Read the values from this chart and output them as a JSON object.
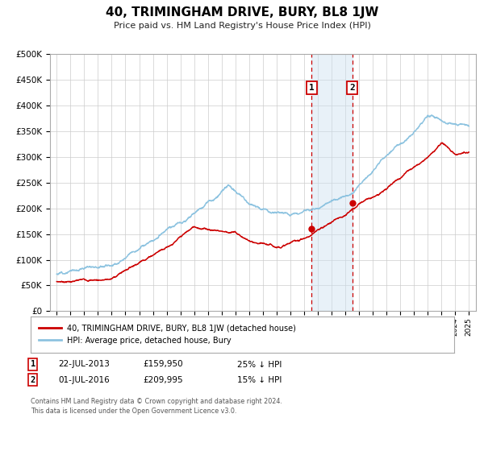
{
  "title": "40, TRIMINGHAM DRIVE, BURY, BL8 1JW",
  "subtitle": "Price paid vs. HM Land Registry's House Price Index (HPI)",
  "ylim": [
    0,
    500000
  ],
  "yticks": [
    0,
    50000,
    100000,
    150000,
    200000,
    250000,
    300000,
    350000,
    400000,
    450000,
    500000
  ],
  "xlim_start": 1994.5,
  "xlim_end": 2025.5,
  "sale1_date": 2013.55,
  "sale1_price": 159950,
  "sale1_label": "1",
  "sale1_date_str": "22-JUL-2013",
  "sale1_price_str": "£159,950",
  "sale1_hpi_str": "25% ↓ HPI",
  "sale2_date": 2016.5,
  "sale2_price": 209995,
  "sale2_label": "2",
  "sale2_date_str": "01-JUL-2016",
  "sale2_price_str": "£209,995",
  "sale2_hpi_str": "15% ↓ HPI",
  "hpi_color": "#8dc3e0",
  "price_color": "#cc0000",
  "marker_color": "#cc0000",
  "shade_color": "#cce0f0",
  "vline_color": "#cc0000",
  "background_color": "#ffffff",
  "grid_color": "#cccccc",
  "legend_label_price": "40, TRIMINGHAM DRIVE, BURY, BL8 1JW (detached house)",
  "legend_label_hpi": "HPI: Average price, detached house, Bury",
  "footer": "Contains HM Land Registry data © Crown copyright and database right 2024.\nThis data is licensed under the Open Government Licence v3.0."
}
